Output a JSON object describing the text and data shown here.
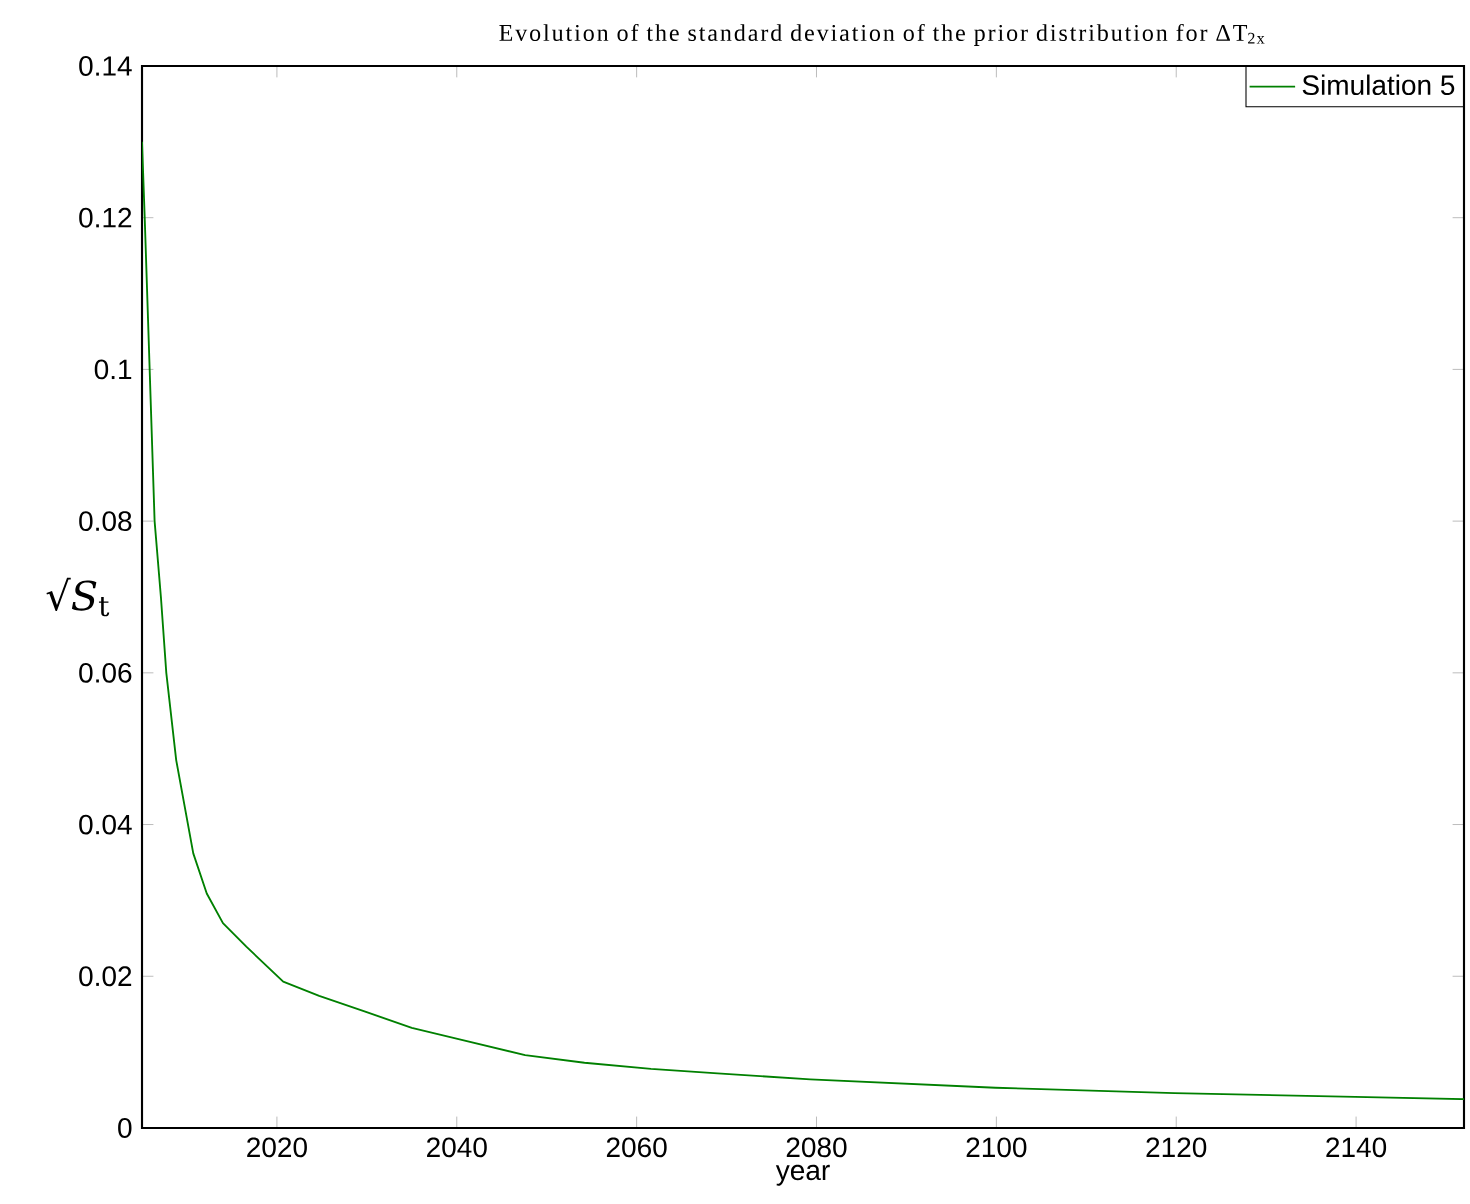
{
  "chart_data": {
    "type": "line",
    "title": "Evolution of the standard deviation of the prior distribution for ΔT$_{2x}$",
    "xlabel": "year",
    "ylabel": "√*S*$_{t}$",
    "x": [
      2005,
      2005.3,
      2006.4,
      2007.1,
      2007.7,
      2008.8,
      2010.7,
      2012.2,
      2014.0,
      2016.6,
      2020.7,
      2024.7,
      2029.9,
      2035.0,
      2040.2,
      2047.6,
      2054.2,
      2061.6,
      2069,
      2079.3,
      2099.9,
      2119.8,
      2139.9,
      2152
    ],
    "series": [
      {
        "name": "Simulation 5",
        "color": "#008000",
        "values": [
          0.13,
          0.12,
          0.08,
          0.07,
          0.06,
          0.0485,
          0.0362,
          0.0309,
          0.027,
          0.0239,
          0.0193,
          0.0174,
          0.0153,
          0.0132,
          0.0117,
          0.0096,
          0.0086,
          0.0078,
          0.0072,
          0.0064,
          0.0053,
          0.0046,
          0.0041,
          0.0038
        ]
      }
    ],
    "xlim": [
      2005,
      2152
    ],
    "ylim": [
      0,
      0.14
    ],
    "xticks": [
      2020,
      2040,
      2060,
      2080,
      2100,
      2120,
      2140
    ],
    "yticks": [
      0,
      0.02,
      0.04,
      0.06,
      0.08,
      0.1,
      0.12,
      0.14
    ],
    "legend": "top right",
    "line_style": "solid",
    "marker": "none"
  }
}
